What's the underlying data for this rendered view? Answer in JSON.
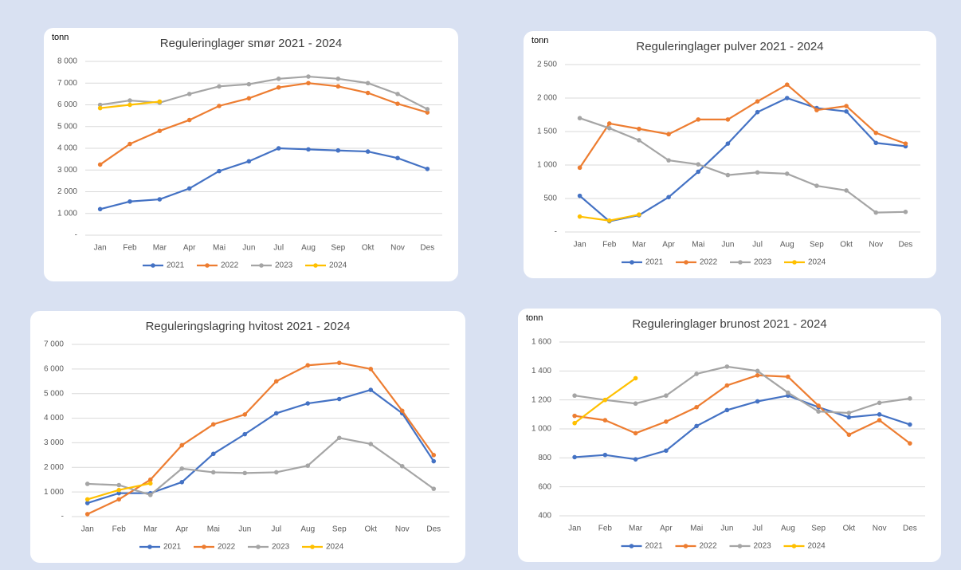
{
  "chart_data": [
    {
      "type": "line",
      "title": "Reguleringlager smør 2021 - 2024",
      "y_label": "tonn",
      "categories": [
        "Jan",
        "Feb",
        "Mar",
        "Apr",
        "Mai",
        "Jun",
        "Jul",
        "Aug",
        "Sep",
        "Okt",
        "Nov",
        "Des"
      ],
      "ylim": [
        0,
        8000
      ],
      "yticks": [
        {
          "value": 0,
          "label": "-"
        },
        {
          "value": 1000,
          "label": "1 000"
        },
        {
          "value": 2000,
          "label": "2 000"
        },
        {
          "value": 3000,
          "label": "3 000"
        },
        {
          "value": 4000,
          "label": "4 000"
        },
        {
          "value": 5000,
          "label": "5 000"
        },
        {
          "value": 6000,
          "label": "6 000"
        },
        {
          "value": 7000,
          "label": "7 000"
        },
        {
          "value": 8000,
          "label": "8 000"
        }
      ],
      "grid": true,
      "series": [
        {
          "name": "2021",
          "color": "#4472c4",
          "values": [
            1200,
            1550,
            1650,
            2150,
            2950,
            3400,
            4000,
            3950,
            3900,
            3850,
            3550,
            3050
          ]
        },
        {
          "name": "2022",
          "color": "#ed7d31",
          "values": [
            3250,
            4200,
            4800,
            5300,
            5950,
            6300,
            6800,
            7000,
            6850,
            6550,
            6050,
            5650
          ]
        },
        {
          "name": "2023",
          "color": "#a5a5a5",
          "values": [
            6000,
            6200,
            6100,
            6500,
            6850,
            6950,
            7200,
            7300,
            7200,
            7000,
            6500,
            5800
          ]
        },
        {
          "name": "2024",
          "color": "#ffc000",
          "values": [
            5850,
            6000,
            6150,
            null,
            null,
            null,
            null,
            null,
            null,
            null,
            null,
            null
          ]
        }
      ]
    },
    {
      "type": "line",
      "title": "Reguleringlager pulver 2021 - 2024",
      "y_label": "tonn",
      "categories": [
        "Jan",
        "Feb",
        "Mar",
        "Apr",
        "Mai",
        "Jun",
        "Jul",
        "Aug",
        "Sep",
        "Okt",
        "Nov",
        "Des"
      ],
      "ylim": [
        0,
        2500
      ],
      "yticks": [
        {
          "value": 0,
          "label": "-"
        },
        500,
        {
          "value": 1000,
          "label": "1 000"
        },
        {
          "value": 1500,
          "label": "1 500"
        },
        {
          "value": 2000,
          "label": "2 000"
        },
        {
          "value": 2500,
          "label": "2 500"
        }
      ],
      "grid": true,
      "series": [
        {
          "name": "2021",
          "color": "#4472c4",
          "values": [
            540,
            160,
            250,
            520,
            900,
            1320,
            1790,
            2000,
            1850,
            1800,
            1330,
            1280
          ]
        },
        {
          "name": "2022",
          "color": "#ed7d31",
          "values": [
            960,
            1620,
            1540,
            1460,
            1680,
            1680,
            1950,
            2200,
            1820,
            1880,
            1480,
            1320
          ]
        },
        {
          "name": "2023",
          "color": "#a5a5a5",
          "values": [
            1700,
            1550,
            1370,
            1070,
            1010,
            850,
            890,
            870,
            690,
            620,
            290,
            300
          ]
        },
        {
          "name": "2024",
          "color": "#ffc000",
          "values": [
            230,
            170,
            260,
            null,
            null,
            null,
            null,
            null,
            null,
            null,
            null,
            null
          ]
        }
      ]
    },
    {
      "type": "line",
      "title": "Reguleringslagring hvitost 2021 - 2024",
      "categories": [
        "Jan",
        "Feb",
        "Mar",
        "Apr",
        "Mai",
        "Jun",
        "Jul",
        "Aug",
        "Sep",
        "Okt",
        "Nov",
        "Des"
      ],
      "ylim": [
        0,
        7000
      ],
      "yticks": [
        {
          "value": 0,
          "label": "-"
        },
        {
          "value": 1000,
          "label": "1 000"
        },
        {
          "value": 2000,
          "label": "2 000"
        },
        {
          "value": 3000,
          "label": "3 000"
        },
        {
          "value": 4000,
          "label": "4 000"
        },
        {
          "value": 5000,
          "label": "5 000"
        },
        {
          "value": 6000,
          "label": "6 000"
        },
        {
          "value": 7000,
          "label": "7 000"
        }
      ],
      "grid": true,
      "series": [
        {
          "name": "2021",
          "color": "#4472c4",
          "values": [
            550,
            950,
            950,
            1400,
            2550,
            3350,
            4200,
            4600,
            4780,
            5150,
            4200,
            2250
          ]
        },
        {
          "name": "2022",
          "color": "#ed7d31",
          "values": [
            100,
            700,
            1500,
            2900,
            3750,
            4150,
            5500,
            6150,
            6250,
            6000,
            4300,
            2500
          ]
        },
        {
          "name": "2023",
          "color": "#a5a5a5",
          "values": [
            1330,
            1280,
            880,
            1950,
            1800,
            1770,
            1800,
            2070,
            3200,
            2950,
            2050,
            1130
          ]
        },
        {
          "name": "2024",
          "color": "#ffc000",
          "values": [
            700,
            1080,
            1350,
            null,
            null,
            null,
            null,
            null,
            null,
            null,
            null,
            null
          ]
        }
      ]
    },
    {
      "type": "line",
      "title": "Reguleringlager brunost 2021 - 2024",
      "y_label": "tonn",
      "categories": [
        "Jan",
        "Feb",
        "Mar",
        "Apr",
        "Mai",
        "Jun",
        "Jul",
        "Aug",
        "Sep",
        "Okt",
        "Nov",
        "Des"
      ],
      "ylim": [
        400,
        1600
      ],
      "yticks": [
        400,
        600,
        800,
        {
          "value": 1000,
          "label": "1 000"
        },
        {
          "value": 1200,
          "label": "1 200"
        },
        {
          "value": 1400,
          "label": "1 400"
        },
        {
          "value": 1600,
          "label": "1 600"
        }
      ],
      "grid": true,
      "series": [
        {
          "name": "2021",
          "color": "#4472c4",
          "values": [
            805,
            820,
            790,
            850,
            1020,
            1130,
            1190,
            1230,
            1150,
            1080,
            1100,
            1030
          ]
        },
        {
          "name": "2022",
          "color": "#ed7d31",
          "values": [
            1090,
            1060,
            970,
            1050,
            1150,
            1300,
            1370,
            1360,
            1160,
            960,
            1060,
            900
          ]
        },
        {
          "name": "2023",
          "color": "#a5a5a5",
          "values": [
            1230,
            1200,
            1175,
            1230,
            1380,
            1430,
            1400,
            1250,
            1120,
            1110,
            1180,
            1210
          ]
        },
        {
          "name": "2024",
          "color": "#ffc000",
          "values": [
            1040,
            1200,
            1350,
            null,
            null,
            null,
            null,
            null,
            null,
            null,
            null,
            null
          ]
        }
      ]
    }
  ]
}
